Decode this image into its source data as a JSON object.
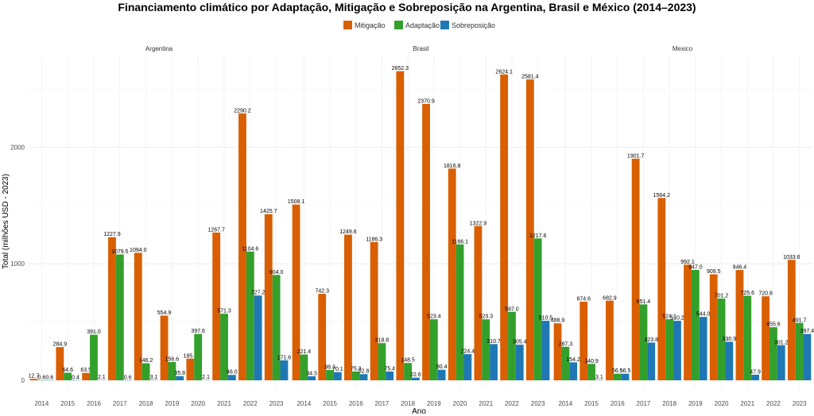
{
  "chart_data": {
    "type": "bar",
    "title": "Financiamento climático por Adaptação, Mitigação e Sobreposição na Argentina, Brasil e México (2014–2023)",
    "xlabel": "Ano",
    "ylabel": "Total (milhões USD - 2023)",
    "ylim": [
      0,
      2800
    ],
    "yticks": [
      "0",
      "1000",
      "2000"
    ],
    "categories": [
      "2014",
      "2015",
      "2016",
      "2017",
      "2018",
      "2019",
      "2020",
      "2021",
      "2022",
      "2023"
    ],
    "legend_position": "top",
    "legend": [
      {
        "name": "Mitigação",
        "color": "#D95F02"
      },
      {
        "name": "Adaptação",
        "color": "#33A02C"
      },
      {
        "name": "Sobreposição",
        "color": "#1F78B4"
      }
    ],
    "facets": [
      {
        "name": "Argentina",
        "series": [
          {
            "name": "Mitigação",
            "values": [
              12.7,
              284.9,
              63.5,
              1227.9,
              1094.0,
              554.9,
              185.5,
              1267.7,
              2290.2,
              1425.7
            ],
            "labels": [
              "12.7",
              "284.9",
              "63.5",
              "1227.9",
              "1094.0",
              "554.9",
              "185.5",
              "1267.7",
              "2290.2",
              "1425.7"
            ]
          },
          {
            "name": "Adaptação",
            "values": [
              0.6,
              64.6,
              391.0,
              1079.5,
              146.2,
              156.6,
              397.6,
              571.3,
              1104.6,
              904.0
            ],
            "labels": [
              "0.6",
              "64.6",
              "391.0",
              "1079.5",
              "146.2",
              "156.6",
              "397.6",
              "571.3",
              "1104.6",
              "904.0"
            ]
          },
          {
            "name": "Sobreposição",
            "values": [
              0.6,
              0.4,
              2.1,
              0.6,
              3.1,
              35.8,
              2.1,
              46.0,
              727.2,
              171.6
            ],
            "labels": [
              "0.6",
              "0.4",
              "2.1",
              "0.6",
              "3.1",
              "35.8",
              "2.1",
              "46.0",
              "727.2",
              "171.6"
            ]
          }
        ]
      },
      {
        "name": "Brasil",
        "series": [
          {
            "name": "Mitigação",
            "values": [
              1508.1,
              742.3,
              1249.6,
              1186.3,
              2652.3,
              2370.9,
              1816.8,
              1322.9,
              2624.1,
              2581.4
            ],
            "labels": [
              "1508.1",
              "742.3",
              "1249.6",
              "1186.3",
              "2652.3",
              "2370.9",
              "1816.8",
              "1322.9",
              "2624.1",
              "2581.4"
            ]
          },
          {
            "name": "Adaptação",
            "values": [
              221.4,
              88.3,
              75.3,
              318.8,
              148.5,
              523.4,
              1166.1,
              523.3,
              587.0,
              1217.6
            ],
            "labels": [
              "221.4",
              "88.3",
              "75.3",
              "318.8",
              "148.5",
              "523.4",
              "1166.1",
              "523.3",
              "587.0",
              "1217.6"
            ]
          },
          {
            "name": "Sobreposição",
            "values": [
              34.5,
              70.1,
              52.8,
              75.4,
              22.6,
              90.4,
              224.4,
              310.7,
              305.4,
              510.5
            ],
            "labels": [
              "34.5",
              "70.1",
              "52.8",
              "75.4",
              "22.6",
              "90.4",
              "224.4",
              "310.7",
              "305.4",
              "510.5"
            ]
          }
        ]
      },
      {
        "name": "Mexico",
        "series": [
          {
            "name": "Mitigação",
            "values": [
              488.9,
              674.6,
              682.9,
              1901.7,
              1564.2,
              992.1,
              909.5,
              946.4,
              720.8,
              1033.6
            ],
            "labels": [
              "488.9",
              "674.6",
              "682.9",
              "1901.7",
              "1564.2",
              "992.1",
              "909.5",
              "946.4",
              "720.8",
              "1033.6"
            ]
          },
          {
            "name": "Adaptação",
            "values": [
              287.3,
              140.9,
              56.5,
              651.4,
              524.1,
              947.0,
              701.2,
              725.6,
              455.6,
              491.7
            ],
            "labels": [
              "287.3",
              "140.9",
              "56.5",
              "651.4",
              "524.1",
              "947.0",
              "701.2",
              "725.6",
              "455.6",
              "491.7"
            ]
          },
          {
            "name": "Sobreposição",
            "values": [
              154.2,
              3.1,
              56.5,
              323.8,
              510.2,
              544.0,
              330.9,
              47.9,
              301.2,
              397.4
            ],
            "labels": [
              "154.2",
              "3.1",
              "56.5",
              "323.8",
              "510.2",
              "544.0",
              "330.9",
              "47.9",
              "301.2",
              "397.4"
            ]
          }
        ]
      }
    ]
  }
}
